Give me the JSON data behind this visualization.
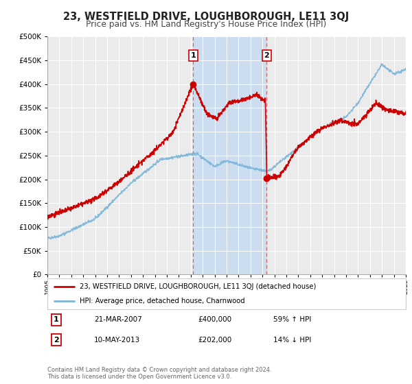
{
  "title": "23, WESTFIELD DRIVE, LOUGHBOROUGH, LE11 3QJ",
  "subtitle": "Price paid vs. HM Land Registry's House Price Index (HPI)",
  "red_label": "23, WESTFIELD DRIVE, LOUGHBOROUGH, LE11 3QJ (detached house)",
  "blue_label": "HPI: Average price, detached house, Charnwood",
  "marker1_date": "21-MAR-2007",
  "marker1_price": 400000,
  "marker1_stat": "59% ↑ HPI",
  "marker1_x": 2007.21,
  "marker2_date": "10-MAY-2013",
  "marker2_price": 202000,
  "marker2_stat": "14% ↓ HPI",
  "marker2_x": 2013.36,
  "ylim_min": 0,
  "ylim_max": 500000,
  "xlim_min": 1995,
  "xlim_max": 2025,
  "background_color": "#ffffff",
  "plot_bg_color": "#ebebeb",
  "grid_color": "#ffffff",
  "red_color": "#cc0000",
  "blue_color": "#7ab4d8",
  "shade_color": "#ccddf0",
  "dashed_color": "#cc6666",
  "title_fontsize": 10.5,
  "subtitle_fontsize": 9,
  "footer_text": "Contains HM Land Registry data © Crown copyright and database right 2024.\nThis data is licensed under the Open Government Licence v3.0."
}
